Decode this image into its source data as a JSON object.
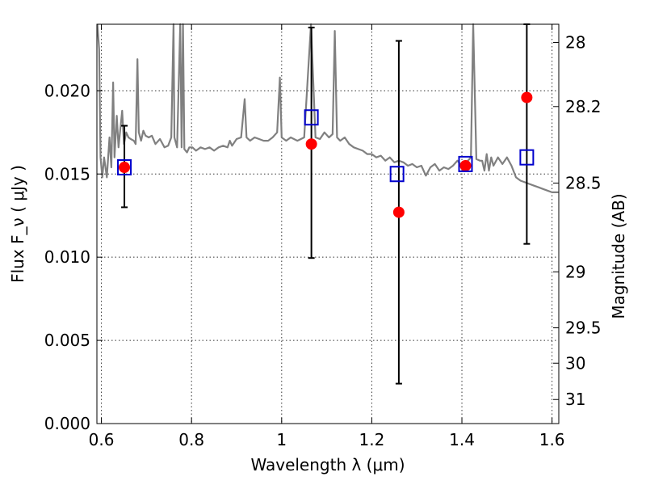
{
  "chart_data": {
    "type": "scatter",
    "title": "",
    "xlabel": "Wavelength  λ (μm)",
    "ylabel": "Flux  F_ν  ( μJy )",
    "ylabel_right": "Magnitude (AB)",
    "xlim": [
      0.59,
      1.615
    ],
    "ylim": [
      0.0,
      0.024
    ],
    "grid": true,
    "x_ticks": [
      {
        "value": 0.6,
        "label": "0.6"
      },
      {
        "value": 0.8,
        "label": "0.8"
      },
      {
        "value": 1.0,
        "label": "1"
      },
      {
        "value": 1.2,
        "label": "1.2"
      },
      {
        "value": 1.4,
        "label": "1.4"
      },
      {
        "value": 1.6,
        "label": "1.6"
      }
    ],
    "y_ticks": [
      {
        "value": 0.0,
        "label": "0.000"
      },
      {
        "value": 0.005,
        "label": "0.005"
      },
      {
        "value": 0.01,
        "label": "0.010"
      },
      {
        "value": 0.015,
        "label": "0.015"
      },
      {
        "value": 0.02,
        "label": "0.020"
      }
    ],
    "mag_ticks": [
      {
        "mag": 28,
        "label": "28"
      },
      {
        "mag": 28.2,
        "label": "28.2"
      },
      {
        "mag": 28.5,
        "label": "28.5"
      },
      {
        "mag": 29,
        "label": "29"
      },
      {
        "mag": 29.5,
        "label": "29.5"
      },
      {
        "mag": 30,
        "label": "30"
      },
      {
        "mag": 31,
        "label": "31"
      }
    ],
    "series": [
      {
        "kind": "spectrum",
        "color": "#808080",
        "points": [
          [
            0.591,
            0.024
          ],
          [
            0.595,
            0.0225
          ],
          [
            0.598,
            0.016
          ],
          [
            0.602,
            0.0148
          ],
          [
            0.606,
            0.016
          ],
          [
            0.612,
            0.0148
          ],
          [
            0.618,
            0.0172
          ],
          [
            0.622,
            0.0154
          ],
          [
            0.626,
            0.0205
          ],
          [
            0.629,
            0.016
          ],
          [
            0.634,
            0.0185
          ],
          [
            0.638,
            0.0166
          ],
          [
            0.642,
            0.0177
          ],
          [
            0.646,
            0.0188
          ],
          [
            0.65,
            0.0168
          ],
          [
            0.655,
            0.0175
          ],
          [
            0.66,
            0.0172
          ],
          [
            0.665,
            0.0171
          ],
          [
            0.672,
            0.017
          ],
          [
            0.676,
            0.0168
          ],
          [
            0.68,
            0.0219
          ],
          [
            0.683,
            0.0175
          ],
          [
            0.688,
            0.017
          ],
          [
            0.693,
            0.0176
          ],
          [
            0.698,
            0.0173
          ],
          [
            0.705,
            0.0172
          ],
          [
            0.712,
            0.0173
          ],
          [
            0.72,
            0.0168
          ],
          [
            0.73,
            0.0171
          ],
          [
            0.74,
            0.0166
          ],
          [
            0.748,
            0.0167
          ],
          [
            0.755,
            0.0172
          ],
          [
            0.76,
            0.024
          ],
          [
            0.762,
            0.0172
          ],
          [
            0.768,
            0.0166
          ],
          [
            0.775,
            0.024
          ],
          [
            0.778,
            0.0166
          ],
          [
            0.781,
            0.024
          ],
          [
            0.784,
            0.0165
          ],
          [
            0.79,
            0.0163
          ],
          [
            0.795,
            0.0166
          ],
          [
            0.802,
            0.0166
          ],
          [
            0.81,
            0.0164
          ],
          [
            0.82,
            0.0166
          ],
          [
            0.83,
            0.0165
          ],
          [
            0.84,
            0.0166
          ],
          [
            0.85,
            0.0164
          ],
          [
            0.86,
            0.0166
          ],
          [
            0.87,
            0.0167
          ],
          [
            0.88,
            0.0166
          ],
          [
            0.885,
            0.017
          ],
          [
            0.89,
            0.0167
          ],
          [
            0.9,
            0.0171
          ],
          [
            0.91,
            0.0172
          ],
          [
            0.918,
            0.0195
          ],
          [
            0.922,
            0.0172
          ],
          [
            0.93,
            0.017
          ],
          [
            0.94,
            0.0172
          ],
          [
            0.95,
            0.0171
          ],
          [
            0.96,
            0.017
          ],
          [
            0.97,
            0.017
          ],
          [
            0.98,
            0.0172
          ],
          [
            0.99,
            0.0175
          ],
          [
            0.996,
            0.0208
          ],
          [
            1.0,
            0.0172
          ],
          [
            1.01,
            0.017
          ],
          [
            1.02,
            0.0172
          ],
          [
            1.035,
            0.017
          ],
          [
            1.05,
            0.0172
          ],
          [
            1.065,
            0.024
          ],
          [
            1.075,
            0.0172
          ],
          [
            1.085,
            0.0171
          ],
          [
            1.095,
            0.0175
          ],
          [
            1.105,
            0.0172
          ],
          [
            1.113,
            0.0174
          ],
          [
            1.118,
            0.0236
          ],
          [
            1.123,
            0.0172
          ],
          [
            1.13,
            0.017
          ],
          [
            1.14,
            0.0172
          ],
          [
            1.15,
            0.0168
          ],
          [
            1.16,
            0.0166
          ],
          [
            1.17,
            0.0165
          ],
          [
            1.18,
            0.0164
          ],
          [
            1.19,
            0.0162
          ],
          [
            1.2,
            0.0162
          ],
          [
            1.21,
            0.016
          ],
          [
            1.22,
            0.0161
          ],
          [
            1.23,
            0.0158
          ],
          [
            1.24,
            0.016
          ],
          [
            1.25,
            0.0157
          ],
          [
            1.26,
            0.0158
          ],
          [
            1.27,
            0.0157
          ],
          [
            1.28,
            0.0155
          ],
          [
            1.29,
            0.0156
          ],
          [
            1.3,
            0.0154
          ],
          [
            1.31,
            0.0155
          ],
          [
            1.32,
            0.0149
          ],
          [
            1.33,
            0.0154
          ],
          [
            1.34,
            0.0156
          ],
          [
            1.35,
            0.0152
          ],
          [
            1.36,
            0.0154
          ],
          [
            1.37,
            0.0153
          ],
          [
            1.38,
            0.0155
          ],
          [
            1.39,
            0.0158
          ],
          [
            1.4,
            0.0155
          ],
          [
            1.41,
            0.0157
          ],
          [
            1.42,
            0.016
          ],
          [
            1.425,
            0.024
          ],
          [
            1.432,
            0.0159
          ],
          [
            1.44,
            0.0158
          ],
          [
            1.445,
            0.0158
          ],
          [
            1.45,
            0.0152
          ],
          [
            1.455,
            0.0162
          ],
          [
            1.46,
            0.0152
          ],
          [
            1.465,
            0.016
          ],
          [
            1.47,
            0.0155
          ],
          [
            1.48,
            0.016
          ],
          [
            1.49,
            0.0156
          ],
          [
            1.5,
            0.016
          ],
          [
            1.51,
            0.0155
          ],
          [
            1.52,
            0.0148
          ],
          [
            1.53,
            0.0146
          ],
          [
            1.54,
            0.0145
          ],
          [
            1.55,
            0.0144
          ],
          [
            1.56,
            0.0143
          ],
          [
            1.57,
            0.0142
          ],
          [
            1.58,
            0.0141
          ],
          [
            1.59,
            0.014
          ],
          [
            1.6,
            0.0139
          ],
          [
            1.614,
            0.0139
          ]
        ]
      },
      {
        "kind": "observed",
        "marker": "circle",
        "color": "#ff0000",
        "points": [
          {
            "x": 0.651,
            "y": 0.0154,
            "yerr_low": 0.013,
            "yerr_high": 0.0179
          },
          {
            "x": 1.066,
            "y": 0.0168,
            "yerr_low": 0.00995,
            "yerr_high": 0.0238
          },
          {
            "x": 1.26,
            "y": 0.0127,
            "yerr_low": 0.0024,
            "yerr_high": 0.023
          },
          {
            "x": 1.408,
            "y": 0.0155,
            "yerr_low": null,
            "yerr_high": null
          },
          {
            "x": 1.544,
            "y": 0.0196,
            "yerr_low": 0.0108,
            "yerr_high": 0.024
          }
        ]
      },
      {
        "kind": "model",
        "marker": "square",
        "color": "#0000cc",
        "points": [
          {
            "x": 0.651,
            "y": 0.0154
          },
          {
            "x": 1.066,
            "y": 0.0184
          },
          {
            "x": 1.256,
            "y": 0.015
          },
          {
            "x": 1.408,
            "y": 0.0156
          },
          {
            "x": 1.544,
            "y": 0.016
          }
        ]
      }
    ]
  }
}
